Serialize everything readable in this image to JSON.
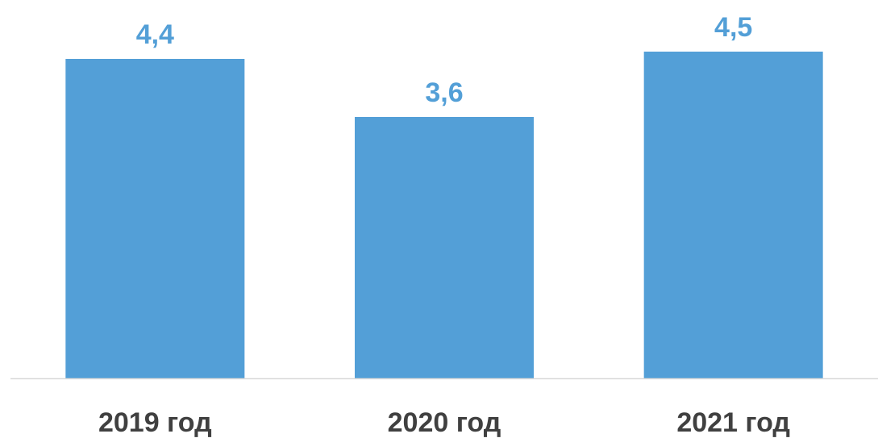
{
  "chart_data": {
    "type": "bar",
    "categories": [
      "2019 год",
      "2020 год",
      "2021 год"
    ],
    "values": [
      4.4,
      3.6,
      4.5
    ],
    "value_labels": [
      "4,4",
      "3,6",
      "4,5"
    ],
    "title": "",
    "xlabel": "",
    "ylabel": "",
    "ylim": [
      0,
      5
    ],
    "grid": false,
    "legend": "none",
    "colors": {
      "bar": "#539fd7",
      "value_label": "#539fd7",
      "tick_label": "#404040",
      "axis": "#d9d9d9"
    }
  }
}
